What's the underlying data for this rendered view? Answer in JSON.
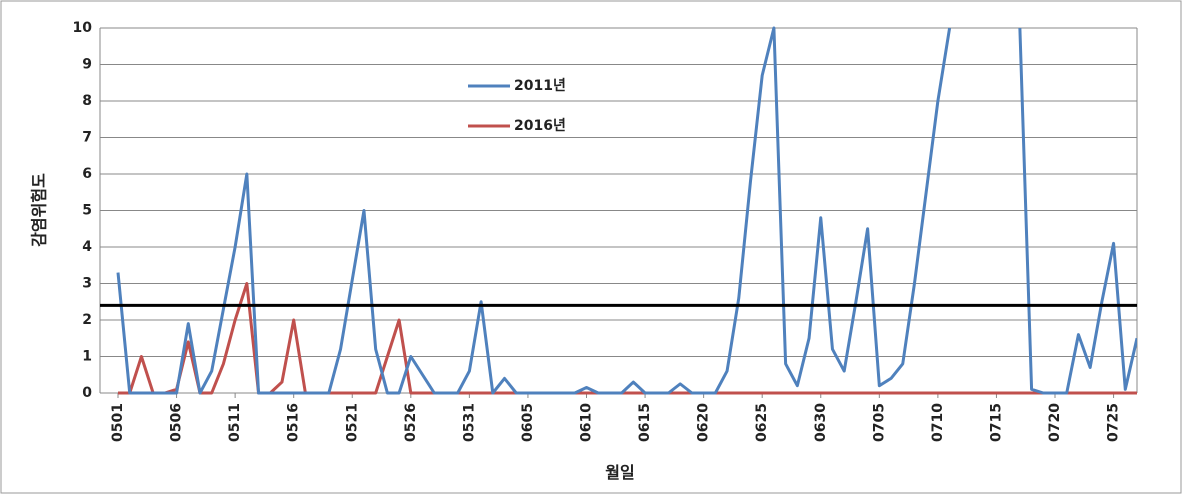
{
  "chart_data": {
    "type": "line",
    "ylabel": "감염위험도",
    "xlabel": "월일",
    "categories": [
      "0501",
      null,
      null,
      null,
      null,
      "0506",
      null,
      null,
      null,
      null,
      "0511",
      null,
      null,
      null,
      null,
      "0516",
      null,
      null,
      null,
      null,
      "0521",
      null,
      null,
      null,
      null,
      "0526",
      null,
      null,
      null,
      null,
      "0531",
      null,
      null,
      null,
      null,
      "0605",
      null,
      null,
      null,
      null,
      "0610",
      null,
      null,
      null,
      null,
      "0615",
      null,
      null,
      null,
      null,
      "0620",
      null,
      null,
      null,
      null,
      "0625",
      null,
      null,
      null,
      null,
      "0630",
      null,
      null,
      null,
      null,
      "0705",
      null,
      null,
      null,
      null,
      "0710",
      null,
      null,
      null,
      null,
      "0715",
      null,
      null,
      null,
      null,
      "0720",
      null,
      null,
      null,
      null,
      "0725",
      null,
      null
    ],
    "series": [
      {
        "name": "2011년",
        "color": "#4f81bd",
        "values": [
          3.3,
          0,
          0,
          0,
          0,
          0,
          1.9,
          0,
          0.6,
          2.3,
          4.0,
          6.0,
          0,
          0,
          0,
          0,
          0,
          0,
          0,
          1.2,
          3.1,
          5.0,
          1.2,
          0,
          0,
          1.0,
          0.5,
          0,
          0,
          0,
          0.6,
          2.5,
          0,
          0.4,
          0,
          0,
          0,
          0,
          0,
          0,
          0.15,
          0,
          0,
          0,
          0.3,
          0,
          0,
          0,
          0.25,
          0,
          0,
          0,
          0.6,
          2.6,
          5.8,
          8.7,
          10,
          0.8,
          0.2,
          1.5,
          4.8,
          1.2,
          0.6,
          2.5,
          4.5,
          0.2,
          0.4,
          0.8,
          3.0,
          5.5,
          8.0,
          10,
          null,
          null,
          null,
          null,
          null,
          10,
          0.1,
          0,
          0,
          0,
          1.6,
          0.7,
          2.5,
          4.1,
          0.1,
          1.5
        ]
      },
      {
        "name": "2016년",
        "color": "#c0504d",
        "values": [
          0,
          0,
          1.0,
          0,
          0,
          0.1,
          1.4,
          0,
          0,
          0.8,
          2.0,
          3.0,
          0,
          0,
          0.3,
          2.0,
          0,
          0,
          0,
          0,
          0,
          0,
          0,
          1.0,
          2.0,
          0,
          0,
          0,
          0,
          0,
          0,
          0,
          0,
          0,
          0,
          0,
          0,
          0,
          0,
          0,
          0,
          0,
          0,
          0,
          0,
          0,
          0,
          0,
          0,
          0,
          0,
          0,
          0,
          0,
          0,
          0,
          0,
          0,
          0,
          0,
          0,
          0,
          0,
          0,
          0,
          0,
          0,
          0,
          0,
          0,
          0,
          0,
          0,
          0,
          0,
          0,
          0,
          0,
          0,
          0,
          0,
          0,
          0,
          0,
          0,
          0,
          0,
          0
        ]
      }
    ],
    "reference_line": {
      "value": 2.4,
      "color": "#000000"
    },
    "ylim": [
      0,
      10
    ],
    "yticks": [
      0,
      1,
      2,
      3,
      4,
      5,
      6,
      7,
      8,
      9,
      10
    ],
    "grid": true
  }
}
